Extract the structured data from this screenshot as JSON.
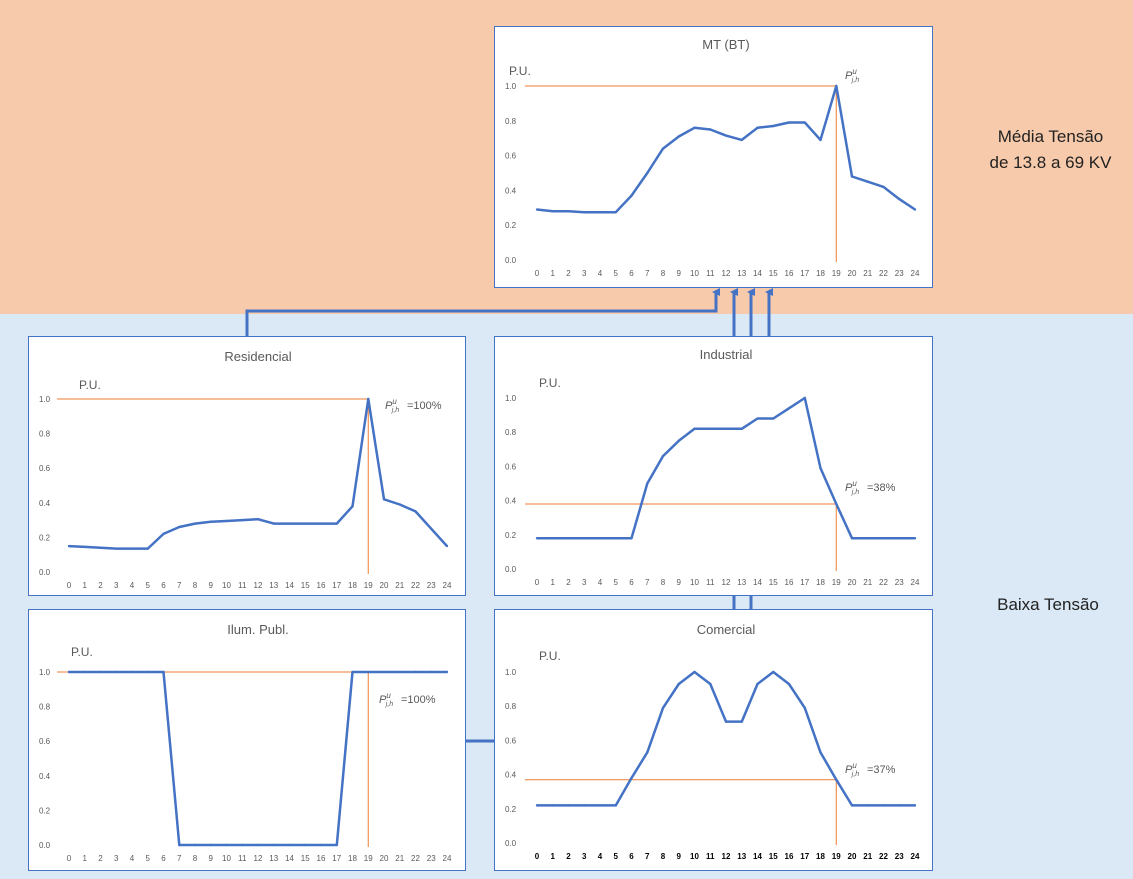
{
  "regions": {
    "medium_voltage_line1": "Média Tensão",
    "medium_voltage_line2": "de 13.8 a 69 KV",
    "low_voltage": "Baixa Tensão"
  },
  "colors": {
    "line": "#4472c4",
    "reference": "#ed7d31",
    "top_band": "#f7caab",
    "bottom_band": "#dbe8f5"
  },
  "chart_data": [
    {
      "id": "mt",
      "type": "line",
      "title": "MT (BT)",
      "ylabel": "P.U.",
      "x": [
        0,
        1,
        2,
        3,
        4,
        5,
        6,
        7,
        8,
        9,
        10,
        11,
        12,
        13,
        14,
        15,
        16,
        17,
        18,
        19,
        20,
        21,
        22,
        23,
        24
      ],
      "values": [
        0.29,
        0.28,
        0.28,
        0.275,
        0.275,
        0.275,
        0.37,
        0.5,
        0.64,
        0.71,
        0.76,
        0.75,
        0.715,
        0.69,
        0.76,
        0.77,
        0.79,
        0.79,
        0.69,
        1.0,
        0.48,
        0.45,
        0.42,
        0.35,
        0.29
      ],
      "ylim": [
        0,
        1
      ],
      "yticks": [
        "0.0",
        "0.2",
        "0.4",
        "0.6",
        "0.8",
        "1.0"
      ],
      "ref_level": 1.0,
      "ref_hour": 19,
      "annotation": "",
      "bold_ticks": false
    },
    {
      "id": "residencial",
      "type": "line",
      "title": "Residencial",
      "ylabel": "P.U.",
      "x": [
        0,
        1,
        2,
        3,
        4,
        5,
        6,
        7,
        8,
        9,
        10,
        11,
        12,
        13,
        14,
        15,
        16,
        17,
        18,
        19,
        20,
        21,
        22,
        23,
        24
      ],
      "values": [
        0.15,
        0.145,
        0.14,
        0.135,
        0.135,
        0.135,
        0.22,
        0.26,
        0.28,
        0.29,
        0.295,
        0.3,
        0.305,
        0.28,
        0.28,
        0.28,
        0.28,
        0.28,
        0.38,
        1.0,
        0.42,
        0.39,
        0.35,
        0.25,
        0.15
      ],
      "ylim": [
        0,
        1
      ],
      "yticks": [
        "0.0",
        "0.2",
        "0.4",
        "0.6",
        "0.8",
        "1.0"
      ],
      "ref_level": 1.0,
      "ref_hour": 19,
      "annotation": "=100%",
      "bold_ticks": false
    },
    {
      "id": "industrial",
      "type": "line",
      "title": "Industrial",
      "ylabel": "P.U.",
      "x": [
        0,
        1,
        2,
        3,
        4,
        5,
        6,
        7,
        8,
        9,
        10,
        11,
        12,
        13,
        14,
        15,
        16,
        17,
        18,
        19,
        20,
        21,
        22,
        23,
        24
      ],
      "values": [
        0.18,
        0.18,
        0.18,
        0.18,
        0.18,
        0.18,
        0.18,
        0.5,
        0.66,
        0.75,
        0.82,
        0.82,
        0.82,
        0.82,
        0.88,
        0.88,
        0.94,
        1.0,
        0.59,
        0.38,
        0.18,
        0.18,
        0.18,
        0.18,
        0.18
      ],
      "ylim": [
        0,
        1
      ],
      "yticks": [
        "0.0",
        "0.2",
        "0.4",
        "0.6",
        "0.8",
        "1.0"
      ],
      "ref_level": 0.38,
      "ref_hour": 19,
      "annotation": "=38%",
      "bold_ticks": false
    },
    {
      "id": "ilum",
      "type": "line",
      "title": "Ilum. Publ.",
      "ylabel": "P.U.",
      "x": [
        0,
        1,
        2,
        3,
        4,
        5,
        6,
        7,
        8,
        9,
        10,
        11,
        12,
        13,
        14,
        15,
        16,
        17,
        18,
        19,
        20,
        21,
        22,
        23,
        24
      ],
      "values": [
        1.0,
        1.0,
        1.0,
        1.0,
        1.0,
        1.0,
        1.0,
        0.0,
        0.0,
        0.0,
        0.0,
        0.0,
        0.0,
        0.0,
        0.0,
        0.0,
        0.0,
        0.0,
        1.0,
        1.0,
        1.0,
        1.0,
        1.0,
        1.0,
        1.0
      ],
      "ylim": [
        0,
        1
      ],
      "yticks": [
        "0.0",
        "0.2",
        "0.4",
        "0.6",
        "0.8",
        "1.0"
      ],
      "ref_level": 1.0,
      "ref_hour": 19,
      "annotation": "=100%",
      "bold_ticks": false
    },
    {
      "id": "comercial",
      "type": "line",
      "title": "Comercial",
      "ylabel": "P.U.",
      "x": [
        0,
        1,
        2,
        3,
        4,
        5,
        6,
        7,
        8,
        9,
        10,
        11,
        12,
        13,
        14,
        15,
        16,
        17,
        18,
        19,
        20,
        21,
        22,
        23,
        24
      ],
      "values": [
        0.22,
        0.22,
        0.22,
        0.22,
        0.22,
        0.22,
        0.38,
        0.53,
        0.79,
        0.93,
        1.0,
        0.93,
        0.71,
        0.71,
        0.93,
        1.0,
        0.93,
        0.79,
        0.53,
        0.37,
        0.22,
        0.22,
        0.22,
        0.22,
        0.22
      ],
      "ylim": [
        0,
        1
      ],
      "yticks": [
        "0.0",
        "0.2",
        "0.4",
        "0.6",
        "0.8",
        "1.0"
      ],
      "ref_level": 0.37,
      "ref_hour": 19,
      "annotation": "=37%",
      "bold_ticks": true
    }
  ]
}
